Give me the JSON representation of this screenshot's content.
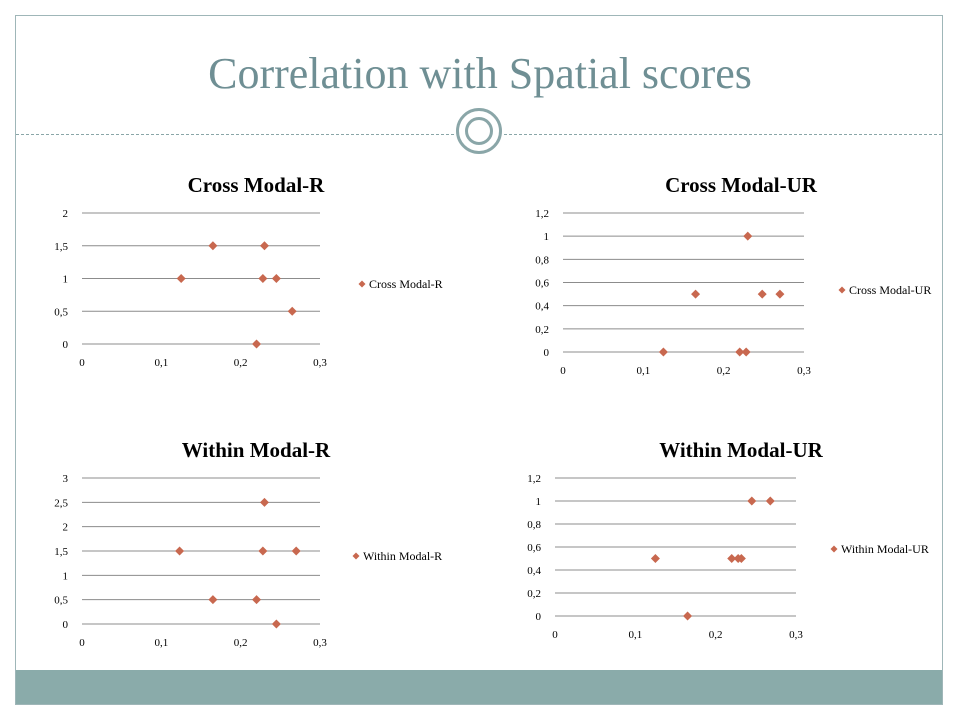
{
  "slide": {
    "title": "Correlation with Spatial scores"
  },
  "colors": {
    "title": "#6f8f94",
    "rule": "#8aa6a8",
    "footer": "#8aabaa",
    "marker": "#c8684f",
    "grid": "#8c8c8c"
  },
  "chart_data": [
    {
      "type": "scatter",
      "title": "Cross Modal-R",
      "series": [
        {
          "name": "Cross Modal-R",
          "x": [
            0.125,
            0.165,
            0.23,
            0.228,
            0.245,
            0.265,
            0.22
          ],
          "y": [
            1,
            1.5,
            1.5,
            1,
            1,
            0.5,
            0
          ]
        }
      ],
      "xlim": [
        0,
        0.3
      ],
      "ylim": [
        0,
        2
      ],
      "xticks": [
        "0",
        "0,1",
        "0,2",
        "0,3"
      ],
      "yticks": [
        "0",
        "0,5",
        "1",
        "1,5",
        "2"
      ],
      "grid": "horizontal",
      "legend": "right"
    },
    {
      "type": "scatter",
      "title": "Cross Modal-UR",
      "series": [
        {
          "name": "Cross Modal-UR",
          "x": [
            0.125,
            0.165,
            0.22,
            0.228,
            0.23,
            0.248,
            0.27
          ],
          "y": [
            0,
            0.5,
            0,
            0,
            1,
            0.5,
            0.5
          ]
        }
      ],
      "xlim": [
        0,
        0.3
      ],
      "ylim": [
        0,
        1.2
      ],
      "xticks": [
        "0",
        "0,1",
        "0,2",
        "0,3"
      ],
      "yticks": [
        "0",
        "0,2",
        "0,4",
        "0,6",
        "0,8",
        "1",
        "1,2"
      ],
      "grid": "horizontal",
      "legend": "right"
    },
    {
      "type": "scatter",
      "title": "Within Modal-R",
      "series": [
        {
          "name": "Within Modal-R",
          "x": [
            0.123,
            0.165,
            0.22,
            0.228,
            0.23,
            0.245,
            0.27
          ],
          "y": [
            1.5,
            0.5,
            0.5,
            1.5,
            2.5,
            0,
            1.5
          ]
        }
      ],
      "xlim": [
        0,
        0.3
      ],
      "ylim": [
        0,
        3
      ],
      "xticks": [
        "0",
        "0,1",
        "0,2",
        "0,3"
      ],
      "yticks": [
        "0",
        "0,5",
        "1",
        "1,5",
        "2",
        "2,5",
        "3"
      ],
      "grid": "horizontal",
      "legend": "right"
    },
    {
      "type": "scatter",
      "title": "Within Modal-UR",
      "series": [
        {
          "name": "Within Modal-UR",
          "x": [
            0.125,
            0.165,
            0.22,
            0.228,
            0.232,
            0.245,
            0.268
          ],
          "y": [
            0.5,
            0,
            0.5,
            0.5,
            0.5,
            1,
            1
          ]
        }
      ],
      "xlim": [
        0,
        0.3
      ],
      "ylim": [
        0,
        1.2
      ],
      "xticks": [
        "0",
        "0,1",
        "0,2",
        "0,3"
      ],
      "yticks": [
        "0",
        "0,2",
        "0,4",
        "0,6",
        "0,8",
        "1",
        "1,2"
      ],
      "grid": "horizontal",
      "legend": "right"
    }
  ]
}
